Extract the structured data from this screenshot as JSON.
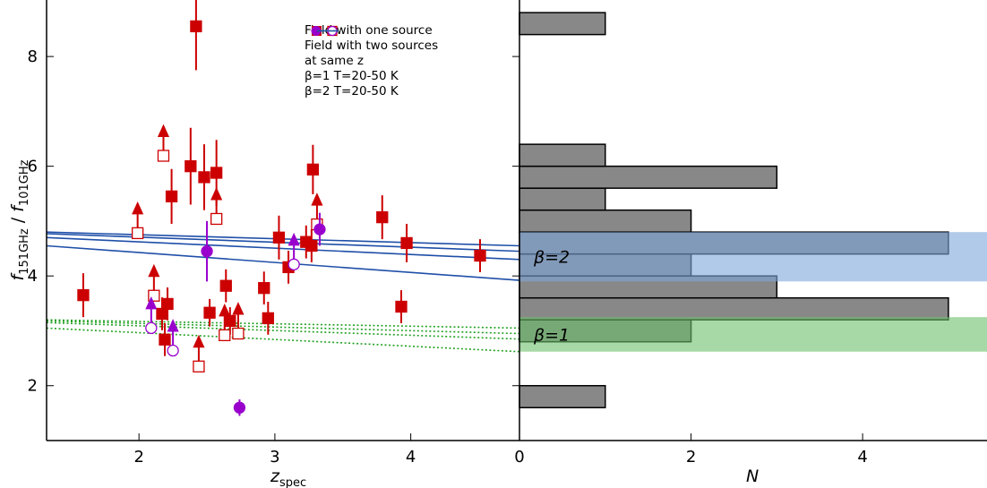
{
  "chart_data": [
    {
      "type": "scatter",
      "xlabel": {
        "main": "z",
        "sub": "spec"
      },
      "ylabel": {
        "num": "f",
        "num_sub": "151GHz",
        "sep": " / ",
        "den": "f",
        "den_sub": "101GHz"
      },
      "xlim": [
        1.32,
        4.8
      ],
      "ylim": [
        1,
        9.03
      ],
      "xticks": [
        2,
        3,
        4
      ],
      "yticks": [
        2,
        4,
        6,
        8
      ],
      "series": [
        {
          "name": "Field with one source",
          "color": "#cc0000",
          "marker": "square",
          "x": [
            1.59,
            2.42,
            2.38,
            2.48,
            2.57,
            2.24,
            3.28,
            3.79,
            3.97,
            3.03,
            3.23,
            3.27,
            3.1,
            4.51,
            2.17,
            2.21,
            2.19,
            2.64,
            2.52,
            2.67,
            2.92,
            2.95,
            3.93
          ],
          "values": [
            3.65,
            8.55,
            6.0,
            5.8,
            5.88,
            5.45,
            5.94,
            5.07,
            4.6,
            4.7,
            4.62,
            4.55,
            4.16,
            4.37,
            3.31,
            3.49,
            2.84,
            3.82,
            3.33,
            3.18,
            3.78,
            3.23,
            3.44
          ],
          "errors": [
            0.4,
            0.8,
            0.7,
            0.6,
            0.6,
            0.5,
            0.45,
            0.4,
            0.35,
            0.4,
            0.3,
            0.3,
            0.3,
            0.3,
            0.3,
            0.3,
            0.3,
            0.3,
            0.25,
            0.25,
            0.3,
            0.3,
            0.3
          ],
          "limits": {
            "x": [
              1.99,
              2.18,
              2.11,
              2.57,
              2.44,
              2.63,
              2.73,
              3.31
            ],
            "values": [
              4.78,
              6.19,
              3.64,
              5.04,
              2.35,
              2.92,
              2.95,
              4.94
            ]
          }
        },
        {
          "name": "Field with two sources at same z",
          "color": "#9900cc",
          "marker": "circle",
          "x": [
            2.5,
            3.33,
            2.74
          ],
          "values": [
            4.45,
            4.85,
            1.6
          ],
          "errors": [
            0.55,
            0.3,
            0.15
          ],
          "limits": {
            "x": [
              2.09,
              2.25,
              3.14
            ],
            "values": [
              3.05,
              2.64,
              4.21
            ]
          }
        },
        {
          "name": "β=1 T=20-50 K",
          "color": "#22a022",
          "style": "dotted",
          "lines": [
            {
              "x": [
                1.32,
                4.8
              ],
              "values": [
                3.2,
                3.05
              ]
            },
            {
              "x": [
                1.32,
                4.8
              ],
              "values": [
                3.18,
                2.95
              ]
            },
            {
              "x": [
                1.32,
                4.8
              ],
              "values": [
                3.15,
                2.85
              ]
            },
            {
              "x": [
                1.32,
                4.8
              ],
              "values": [
                3.05,
                2.62
              ]
            }
          ]
        },
        {
          "name": "β=2 T=20-50 K",
          "color": "#1f4fa8",
          "style": "solid",
          "lines": [
            {
              "x": [
                1.32,
                4.8
              ],
              "values": [
                4.8,
                4.55
              ]
            },
            {
              "x": [
                1.32,
                4.8
              ],
              "values": [
                4.77,
                4.45
              ]
            },
            {
              "x": [
                1.32,
                4.8
              ],
              "values": [
                4.7,
                4.3
              ]
            },
            {
              "x": [
                1.32,
                4.8
              ],
              "values": [
                4.55,
                3.92
              ]
            }
          ]
        }
      ]
    },
    {
      "type": "histogram",
      "orientation": "horizontal",
      "xlabel": "N",
      "xlim": [
        0,
        5.45
      ],
      "xticks": [
        0,
        2,
        4
      ],
      "ylim": [
        1,
        9.03
      ],
      "color": "#888888",
      "bins": [
        1.6,
        2.0,
        2.4,
        2.8,
        3.2,
        3.6,
        4.0,
        4.4,
        4.8,
        5.2,
        5.6,
        6.0,
        6.4,
        6.8,
        7.2,
        7.6,
        8.0,
        8.4,
        8.8
      ],
      "values": [
        1,
        0,
        0,
        2,
        5,
        3,
        2,
        5,
        2,
        1,
        3,
        1,
        0,
        0,
        0,
        0,
        0,
        1
      ],
      "bands": [
        {
          "label": "β=2",
          "range": [
            3.9,
            4.8
          ],
          "color": "#7ea6db"
        },
        {
          "label": "β=1",
          "range": [
            2.62,
            3.25
          ],
          "color": "#6cc06a"
        }
      ]
    }
  ]
}
